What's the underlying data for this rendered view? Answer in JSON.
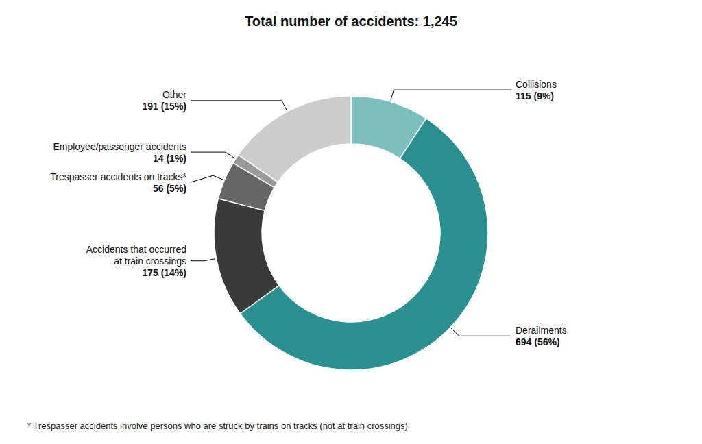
{
  "chart_data": {
    "type": "donut",
    "title": "Total number of accidents: 1,245",
    "footnote": "* Trespasser accidents involve persons who are struck by trains on tracks (not at train crossings)",
    "categories": [
      "Collisions",
      "Derailments",
      "Accidents that occurred\nat train crossings",
      "Trespasser accidents on tracks*",
      "Employee/passenger accidents",
      "Other"
    ],
    "values": [
      115,
      694,
      175,
      56,
      14,
      191
    ],
    "value_labels": [
      "115 (9%)",
      "694 (56%)",
      "175 (14%)",
      "56 (5%)",
      "14 (1%)",
      "191 (15%)"
    ],
    "colors": [
      "#7bbfbf",
      "#2a9090",
      "#3a3a3a",
      "#666666",
      "#999999",
      "#cccccc"
    ]
  }
}
